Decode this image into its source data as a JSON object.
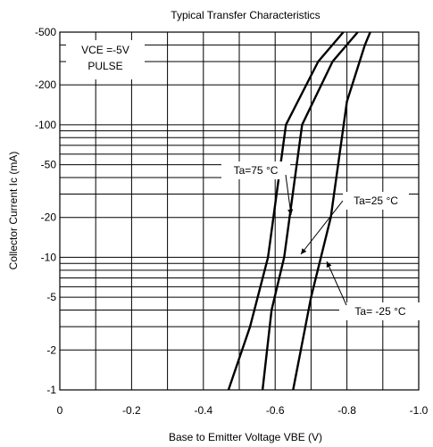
{
  "chart_data": {
    "type": "line",
    "title": "Typical Transfer Characteristics",
    "xlabel": "Base to Emitter Voltage VBE (V)",
    "ylabel": "Collector Current Ic (mA)",
    "x_scale": "linear",
    "y_scale": "log",
    "xlim": [
      0,
      -1.0
    ],
    "ylim": [
      -1,
      -500
    ],
    "x_ticks": [
      {
        "value": 0,
        "label": "0"
      },
      {
        "value": -0.2,
        "label": "-0.2"
      },
      {
        "value": -0.4,
        "label": "-0.4"
      },
      {
        "value": -0.6,
        "label": "-0.6"
      },
      {
        "value": -0.8,
        "label": "-0.8"
      },
      {
        "value": -1.0,
        "label": "-1.0"
      }
    ],
    "y_ticks": [
      {
        "value": -1,
        "label": "-1"
      },
      {
        "value": -2,
        "label": "-2"
      },
      {
        "value": -5,
        "label": "-5"
      },
      {
        "value": -10,
        "label": "-10"
      },
      {
        "value": -20,
        "label": "-20"
      },
      {
        "value": -50,
        "label": "-50"
      },
      {
        "value": -100,
        "label": "-100"
      },
      {
        "value": -200,
        "label": "-200"
      },
      {
        "value": -500,
        "label": "-500"
      }
    ],
    "grid": true,
    "conditions": {
      "line1": "VCE =-5V",
      "line2": "PULSE"
    },
    "series": [
      {
        "name": "Ta=75 °C",
        "x": [
          -0.47,
          -0.53,
          -0.58,
          -0.63,
          -0.72,
          -0.79
        ],
        "y": [
          -1,
          -3,
          -10,
          -100,
          -300,
          -500
        ]
      },
      {
        "name": "Ta=25 °C",
        "x": [
          -0.565,
          -0.59,
          -0.625,
          -0.675,
          -0.76,
          -0.83
        ],
        "y": [
          -1,
          -4,
          -10,
          -100,
          -300,
          -500
        ]
      },
      {
        "name": "Ta= -25 °C",
        "x": [
          -0.65,
          -0.7,
          -0.755,
          -0.8,
          -0.85,
          -0.865
        ],
        "y": [
          -1,
          -5,
          -20,
          -150,
          -400,
          -500
        ]
      }
    ],
    "annotations": [
      {
        "text": "Ta=75 °C",
        "series": 0
      },
      {
        "text": "Ta=25 °C",
        "series": 1
      },
      {
        "text": "Ta= -25 °C",
        "series": 2
      }
    ]
  }
}
